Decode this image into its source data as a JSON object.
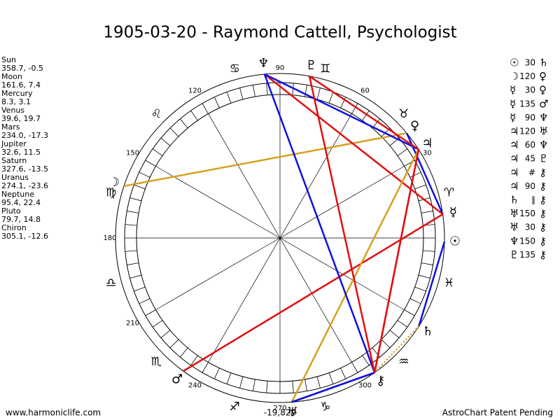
{
  "title": "1905-03-20 - Raymond Cattell, Psychologist",
  "planets": [
    {
      "name": "Sun",
      "glyph": "☉",
      "pos": "358.7, -0.5"
    },
    {
      "name": "Moon",
      "glyph": "☽",
      "pos": "161.6, 7.4"
    },
    {
      "name": "Mercury",
      "glyph": "☿",
      "pos": "8.3, 3.1"
    },
    {
      "name": "Venus",
      "glyph": "♀",
      "pos": "39.6, 19.7"
    },
    {
      "name": "Mars",
      "glyph": "♂",
      "pos": "234.0, -17.3"
    },
    {
      "name": "Jupiter",
      "glyph": "♃",
      "pos": "32.6, 11.5"
    },
    {
      "name": "Saturn",
      "glyph": "♄",
      "pos": "327.6, -13.5"
    },
    {
      "name": "Uranus",
      "glyph": "♅",
      "pos": "274.1, -23.6"
    },
    {
      "name": "Neptune",
      "glyph": "♆",
      "pos": "95.4, 22.4"
    },
    {
      "name": "Pluto",
      "glyph": "♇",
      "pos": "79.7, 14.8"
    },
    {
      "name": "Chiron",
      "glyph": "⚷",
      "pos": "305.1, -12.6"
    }
  ],
  "aspects": [
    {
      "from": "☉",
      "aspect": "30",
      "to": "♄",
      "color": "#1010e0"
    },
    {
      "from": "☽",
      "aspect": "120",
      "to": "♀",
      "color": "#d4a020"
    },
    {
      "from": "☿",
      "aspect": "30",
      "to": "♀",
      "color": "#1010e0"
    },
    {
      "from": "☿",
      "aspect": "135",
      "to": "♂",
      "color": "#e01010"
    },
    {
      "from": "☿",
      "aspect": "90",
      "to": "♆",
      "color": "#e01010"
    },
    {
      "from": "♃",
      "aspect": "120",
      "to": "♅",
      "color": "#d4a020"
    },
    {
      "from": "♃",
      "aspect": "60",
      "to": "♆",
      "color": "#1010e0"
    },
    {
      "from": "♃",
      "aspect": "45",
      "to": "♇",
      "color": "#e01010"
    },
    {
      "from": "♃",
      "aspect": "#",
      "to": "⚷",
      "color": "#e01010"
    },
    {
      "from": "♃",
      "aspect": "90",
      "to": "⚷",
      "color": "#e01010"
    },
    {
      "from": "♄",
      "aspect": "∥",
      "to": "⚷",
      "color": "#d4a020"
    },
    {
      "from": "♅",
      "aspect": "150",
      "to": "⚷",
      "color": "#1010e0"
    },
    {
      "from": "♅",
      "aspect": "30",
      "to": "⚷",
      "color": "#1010e0"
    },
    {
      "from": "♆",
      "aspect": "150",
      "to": "⚷",
      "color": "#1010e0"
    },
    {
      "from": "♇",
      "aspect": "135",
      "to": "⚷",
      "color": "#e01010"
    }
  ],
  "signs": [
    "♈",
    "♉",
    "♊",
    "♋",
    "♌",
    "♍",
    "♎",
    "♏",
    "♐",
    "♑",
    "♒",
    "♓"
  ],
  "degree_labels": [
    "30",
    "60",
    "90",
    "120",
    "150",
    "180",
    "210",
    "240",
    "270",
    "300"
  ],
  "footer": {
    "left": "www.harmoniclife.com",
    "center": "-19,829",
    "right": "AstroChart Patent Pending"
  }
}
